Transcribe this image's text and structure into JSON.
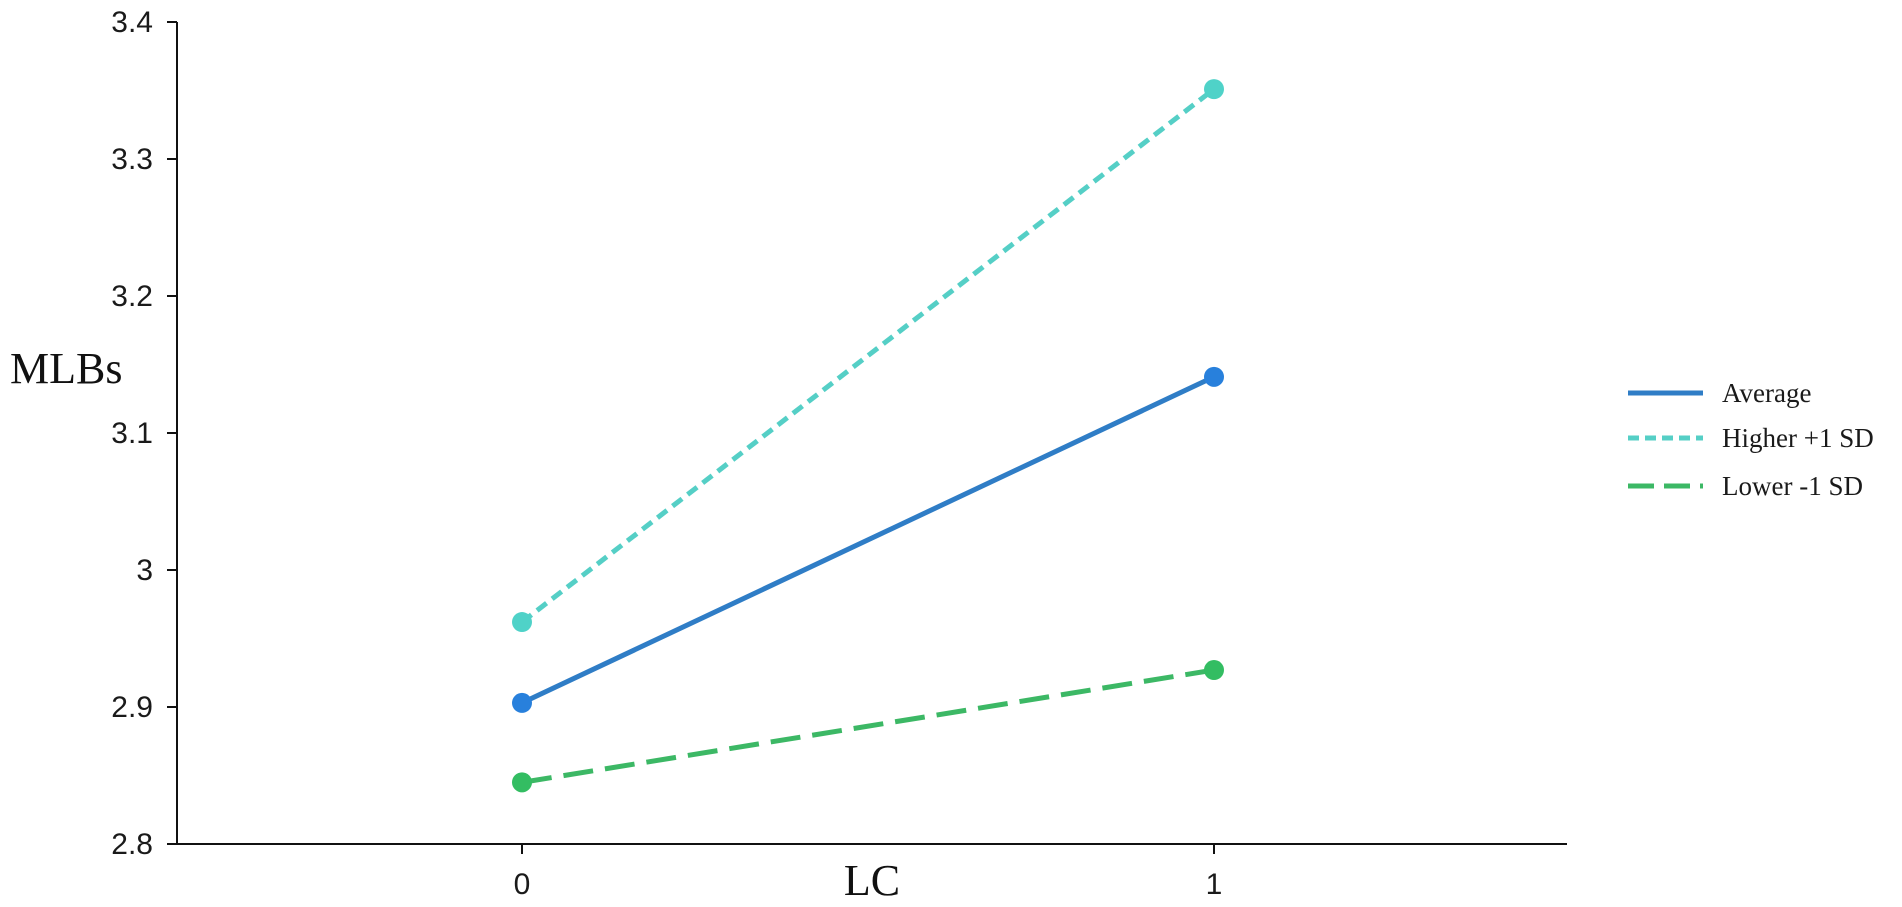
{
  "chart_data": {
    "type": "line",
    "title": "",
    "xlabel": "LC",
    "ylabel": "MLBs",
    "x": [
      0,
      1
    ],
    "x_tick_labels": [
      "0",
      "1"
    ],
    "ylim": [
      2.8,
      3.4
    ],
    "y_ticks": [
      2.8,
      2.9,
      3.0,
      3.1,
      3.2,
      3.3,
      3.4
    ],
    "y_tick_labels": [
      "2.8",
      "2.9",
      "3",
      "3.1",
      "3.2",
      "3.3",
      "3.4"
    ],
    "grid": false,
    "legend_position": "right",
    "series": [
      {
        "name": "Average",
        "values": [
          2.903,
          3.141
        ],
        "color": "#2f7dc6",
        "line_style": "solid",
        "marker_color": "#2880dc"
      },
      {
        "name": "Higher +1 SD",
        "values": [
          2.962,
          3.351
        ],
        "color": "#55cfc6",
        "line_style": "dashed",
        "marker_color": "#4fd2c8"
      },
      {
        "name": "Lower -1 SD",
        "values": [
          2.845,
          2.927
        ],
        "color": "#3cb865",
        "line_style": "long-dashed",
        "marker_color": "#33bd62"
      }
    ]
  }
}
